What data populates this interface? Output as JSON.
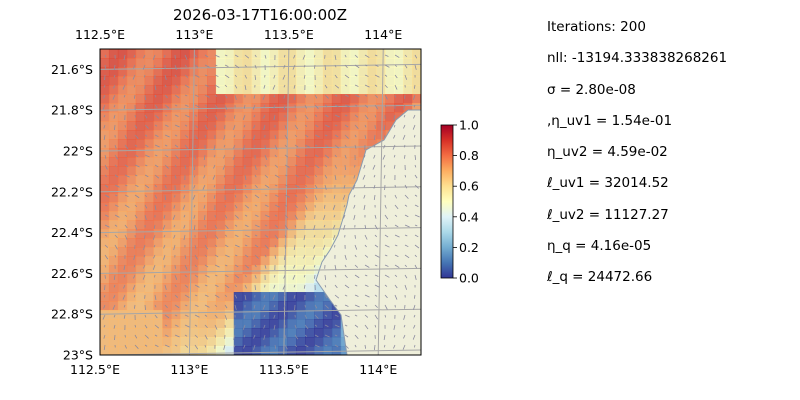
{
  "title": "2026-03-17T16:00:00Z",
  "params": [
    "Iterations: 200",
    "nll: -13194.333838268261",
    "σ = 2.80e-08",
    ",η_uv1 = 1.54e-01",
    "η_uv2 = 4.59e-02",
    "ℓ_uv1 = 32014.52",
    "ℓ_uv2 = 11127.27",
    "η_q = 4.16e-05",
    "ℓ_q = 24472.66"
  ],
  "chart_data": {
    "type": "heatmap",
    "title": "2026-03-17T16:00:00Z",
    "x_ticks": [
      "112.5°E",
      "113°E",
      "113.5°E",
      "114°E"
    ],
    "y_ticks": [
      "21.6°S",
      "21.8°S",
      "22°S",
      "22.2°S",
      "22.4°S",
      "22.6°S",
      "22.8°S",
      "23°S"
    ],
    "x_tick_values": [
      112.5,
      113.0,
      113.5,
      114.0
    ],
    "y_tick_values": [
      -21.6,
      -21.8,
      -22.0,
      -22.2,
      -22.4,
      -22.6,
      -22.8,
      -23.0
    ],
    "xlim": [
      112.5,
      114.2
    ],
    "ylim": [
      -23.0,
      -21.5
    ],
    "colorbar": {
      "ticks": [
        "0.0",
        "0.2",
        "0.4",
        "0.6",
        "0.8",
        "1.0"
      ],
      "tick_values": [
        0.0,
        0.2,
        0.4,
        0.6,
        0.8,
        1.0
      ],
      "range": [
        0,
        1
      ],
      "colormap": "RdYlBu_r"
    },
    "grid": true,
    "land_color": "#efefdb",
    "ocean_mask_color": "#9fbfe0",
    "gridline_color": "#a6a6a6",
    "arrow_color": "#8a8aa0"
  }
}
